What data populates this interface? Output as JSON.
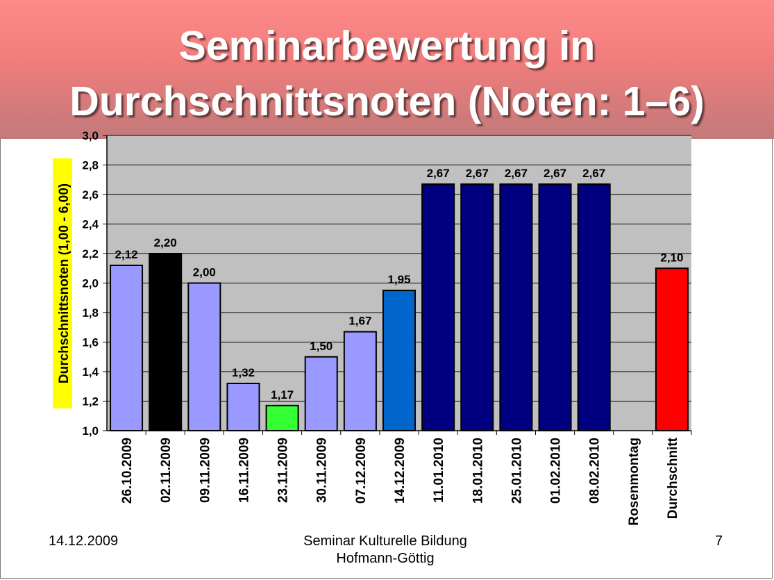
{
  "slide": {
    "title_line1": "Seminarbewertung in",
    "title_line2": "Durchschnittsnoten (Noten: 1–6)",
    "footer_left": "14.12.2009",
    "footer_center_line1": "Seminar Kulturelle Bildung",
    "footer_center_line2": "Hofmann-Göttig",
    "footer_right": "7"
  },
  "chart_data": {
    "type": "bar",
    "title": "Seminarbewertung in Durchschnittsnoten (Noten: 1–6)",
    "ylabel": "Durchschnittsnoten (1,00 - 6,00)",
    "xlabel": "",
    "ylim": [
      1.0,
      3.0
    ],
    "ytick_step": 0.2,
    "yticks": [
      "1,0",
      "1,2",
      "1,4",
      "1,6",
      "1,8",
      "2,0",
      "2,2",
      "2,4",
      "2,6",
      "2,8",
      "3,0"
    ],
    "grid": true,
    "categories": [
      "26.10.2009",
      "02.11.2009",
      "09.11.2009",
      "16.11.2009",
      "23.11.2009",
      "30.11.2009",
      "07.12.2009",
      "14.12.2009",
      "11.01.2010",
      "18.01.2010",
      "25.01.2010",
      "01.02.2010",
      "08.02.2010",
      "Rosenmontag",
      "Durchschnitt"
    ],
    "values": [
      2.12,
      2.2,
      2.0,
      1.32,
      1.17,
      1.5,
      1.67,
      1.95,
      2.67,
      2.67,
      2.67,
      2.67,
      2.67,
      null,
      2.1
    ],
    "value_labels": [
      "2,12",
      "2,20",
      "2,00",
      "1,32",
      "1,17",
      "1,50",
      "1,67",
      "1,95",
      "2,67",
      "2,67",
      "2,67",
      "2,67",
      "2,67",
      "",
      "2,10"
    ],
    "bar_colors": [
      "#9999ff",
      "#000000",
      "#9999ff",
      "#9999ff",
      "#33ff33",
      "#9999ff",
      "#9999ff",
      "#0066cc",
      "#000080",
      "#000080",
      "#000080",
      "#000080",
      "#000080",
      "none",
      "#ff0000"
    ],
    "plot_background": "#c0c0c0",
    "ylabel_highlight": "#ffff00"
  }
}
